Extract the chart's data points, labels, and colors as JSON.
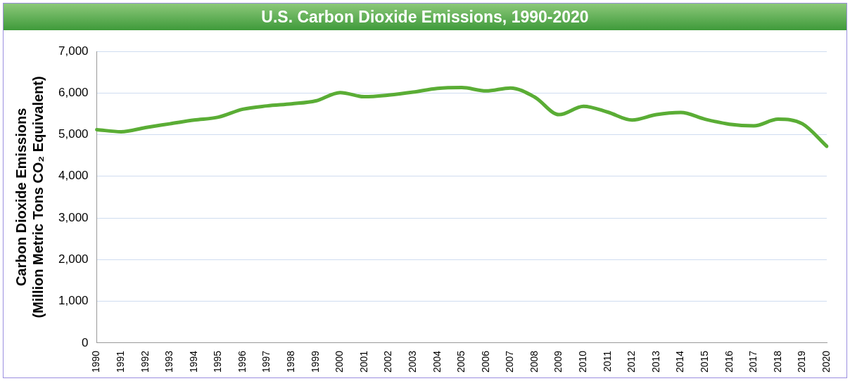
{
  "chart_data": {
    "type": "line",
    "title": "U.S. Carbon Dioxide Emissions, 1990-2020",
    "ylabel": "Carbon Dioxide Emissions\n(Million Metric Tons CO₂ Equivalent)",
    "categories": [
      "1990",
      "1991",
      "1992",
      "1993",
      "1994",
      "1995",
      "1996",
      "1997",
      "1998",
      "1999",
      "2000",
      "2001",
      "2002",
      "2003",
      "2004",
      "2005",
      "2006",
      "2007",
      "2008",
      "2009",
      "2010",
      "2011",
      "2012",
      "2013",
      "2014",
      "2015",
      "2016",
      "2017",
      "2018",
      "2019",
      "2020"
    ],
    "series": [
      {
        "color": "#5aad35",
        "values": [
          5120,
          5070,
          5170,
          5260,
          5350,
          5420,
          5610,
          5690,
          5740,
          5810,
          6010,
          5910,
          5950,
          6020,
          6110,
          6130,
          6050,
          6120,
          5900,
          5480,
          5680,
          5540,
          5350,
          5480,
          5530,
          5370,
          5250,
          5210,
          5370,
          5260,
          4720
        ]
      }
    ],
    "ylim": [
      0,
      7000
    ],
    "yticks": [
      0,
      {
        "value": 1000,
        "label": "1,000"
      },
      {
        "value": 2000,
        "label": "2,000"
      },
      {
        "value": 3000,
        "label": "3,000"
      },
      {
        "value": 4000,
        "label": "4,000"
      },
      {
        "value": 5000,
        "label": "5,000"
      },
      {
        "value": 6000,
        "label": "6,000"
      },
      {
        "value": 7000,
        "label": "7,000"
      }
    ],
    "grid": "y",
    "marker": "none",
    "line_style": "solid"
  }
}
